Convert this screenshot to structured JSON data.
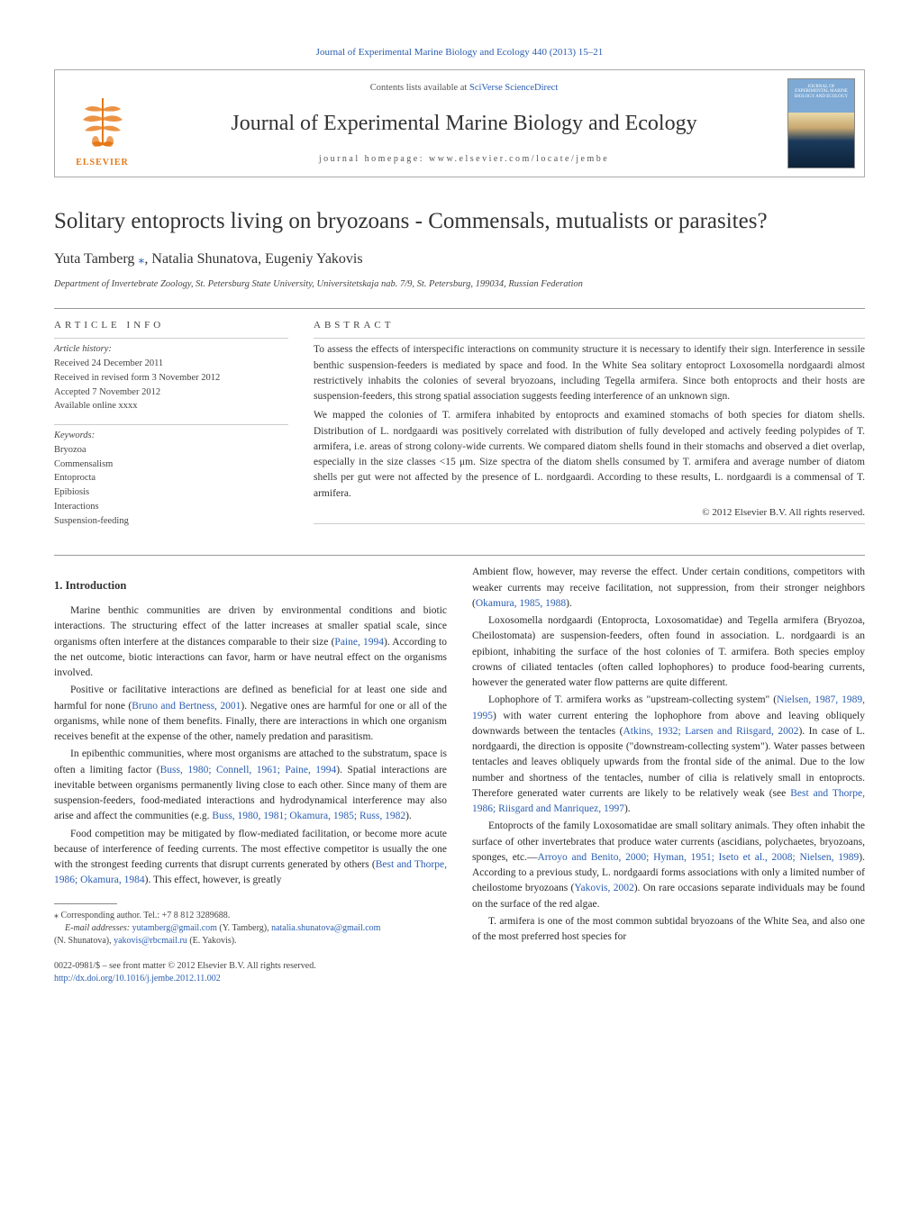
{
  "top_link": "Journal of Experimental Marine Biology and Ecology 440 (2013) 15–21",
  "header": {
    "contents_prefix": "Contents lists available at ",
    "contents_link": "SciVerse ScienceDirect",
    "journal_title": "Journal of Experimental Marine Biology and Ecology",
    "homepage": "journal homepage: www.elsevier.com/locate/jembe",
    "publisher": "ELSEVIER",
    "cover_text": "JOURNAL OF EXPERIMENTAL MARINE BIOLOGY AND ECOLOGY",
    "logo_color": "#e67817"
  },
  "article": {
    "title": "Solitary entoprocts living on bryozoans - Commensals, mutualists or parasites?",
    "authors": "Yuta Tamberg ",
    "authors_rest": ", Natalia Shunatova, Eugeniy Yakovis",
    "corr_mark": "⁎",
    "affiliation": "Department of Invertebrate Zoology, St. Petersburg State University, Universitetskaja nab. 7/9, St. Petersburg, 199034, Russian Federation"
  },
  "info": {
    "header": "ARTICLE INFO",
    "history_label": "Article history:",
    "history": [
      "Received 24 December 2011",
      "Received in revised form 3 November 2012",
      "Accepted 7 November 2012",
      "Available online xxxx"
    ],
    "keywords_label": "Keywords:",
    "keywords": [
      "Bryozoa",
      "Commensalism",
      "Entoprocta",
      "Epibiosis",
      "Interactions",
      "Suspension-feeding"
    ]
  },
  "abstract": {
    "header": "ABSTRACT",
    "paragraphs": [
      "To assess the effects of interspecific interactions on community structure it is necessary to identify their sign. Interference in sessile benthic suspension-feeders is mediated by space and food. In the White Sea solitary entoproct Loxosomella nordgaardi almost restrictively inhabits the colonies of several bryozoans, including Tegella armifera. Since both entoprocts and their hosts are suspension-feeders, this strong spatial association suggests feeding interference of an unknown sign.",
      "We mapped the colonies of T. armifera inhabited by entoprocts and examined stomachs of both species for diatom shells. Distribution of L. nordgaardi was positively correlated with distribution of fully developed and actively feeding polypides of T. armifera, i.e. areas of strong colony-wide currents. We compared diatom shells found in their stomachs and observed a diet overlap, especially in the size classes <15 μm. Size spectra of the diatom shells consumed by T. armifera and average number of diatom shells per gut were not affected by the presence of L. nordgaardi. According to these results, L. nordgaardi is a commensal of T. armifera."
    ],
    "copyright": "© 2012 Elsevier B.V. All rights reserved."
  },
  "body": {
    "intro_heading": "1. Introduction",
    "left_paragraphs": [
      "Marine benthic communities are driven by environmental conditions and biotic interactions. The structuring effect of the latter increases at smaller spatial scale, since organisms often interfere at the distances comparable to their size (|Paine, 1994|). According to the net outcome, biotic interactions can favor, harm or have neutral effect on the organisms involved.",
      "Positive or facilitative interactions are defined as beneficial for at least one side and harmful for none (|Bruno and Bertness, 2001|). Negative ones are harmful for one or all of the organisms, while none of them benefits. Finally, there are interactions in which one organism receives benefit at the expense of the other, namely predation and parasitism.",
      "In epibenthic communities, where most organisms are attached to the substratum, space is often a limiting factor (|Buss, 1980; Connell, 1961; Paine, 1994|). Spatial interactions are inevitable between organisms permanently living close to each other. Since many of them are suspension-feeders, food-mediated interactions and hydrodynamical interference may also arise and affect the communities (e.g. |Buss, 1980, 1981; Okamura, 1985; Russ, 1982|).",
      "Food competition may be mitigated by flow-mediated facilitation, or become more acute because of interference of feeding currents. The most effective competitor is usually the one with the strongest feeding currents that disrupt currents generated by others (|Best and Thorpe, 1986; Okamura, 1984|). This effect, however, is greatly"
    ],
    "right_paragraphs": [
      "Ambient flow, however, may reverse the effect. Under certain conditions, competitors with weaker currents may receive facilitation, not suppression, from their stronger neighbors (|Okamura, 1985, 1988|).",
      "Loxosomella nordgaardi (Entoprocta, Loxosomatidae) and Tegella armifera (Bryozoa, Cheilostomata) are suspension-feeders, often found in association. L. nordgaardi is an epibiont, inhabiting the surface of the host colonies of T. armifera. Both species employ crowns of ciliated tentacles (often called lophophores) to produce food-bearing currents, however the generated water flow patterns are quite different.",
      "Lophophore of T. armifera works as \"upstream-collecting system\" (|Nielsen, 1987, 1989, 1995|) with water current entering the lophophore from above and leaving obliquely downwards between the tentacles (|Atkins, 1932; Larsen and Riisgard, 2002|). In case of L. nordgaardi, the direction is opposite (\"downstream-collecting system\"). Water passes between tentacles and leaves obliquely upwards from the frontal side of the animal. Due to the low number and shortness of the tentacles, number of cilia is relatively small in entoprocts. Therefore generated water currents are likely to be relatively weak (see |Best and Thorpe, 1986; Riisgard and Manriquez, 1997|).",
      "Entoprocts of the family Loxosomatidae are small solitary animals. They often inhabit the surface of other invertebrates that produce water currents (ascidians, polychaetes, bryozoans, sponges, etc.—|Arroyo and Benito, 2000; Hyman, 1951; Iseto et al., 2008; Nielsen, 1989|). According to a previous study, L. nordgaardi forms associations with only a limited number of cheilostome bryozoans (|Yakovis, 2002|). On rare occasions separate individuals may be found on the surface of the red algae.",
      "T. armifera is one of the most common subtidal bryozoans of the White Sea, and also one of the most preferred host species for"
    ]
  },
  "footnote": {
    "corr": "⁎ Corresponding author. Tel.: +7 8 812 3289688.",
    "email_label": "E-mail addresses: ",
    "email1": "yutamberg@gmail.com",
    "email1_who": " (Y. Tamberg), ",
    "email2": "natalia.shunatova@gmail.com",
    "email2_who": " (N. Shunatova), ",
    "email3": "yakovis@rbcmail.ru",
    "email3_who": " (E. Yakovis)."
  },
  "footer": {
    "line1": "0022-0981/$ – see front matter © 2012 Elsevier B.V. All rights reserved.",
    "doi": "http://dx.doi.org/10.1016/j.jembe.2012.11.002"
  },
  "colors": {
    "link": "#2a5db0",
    "text": "#2a2a2a",
    "rule": "#999999",
    "background": "#ffffff"
  }
}
